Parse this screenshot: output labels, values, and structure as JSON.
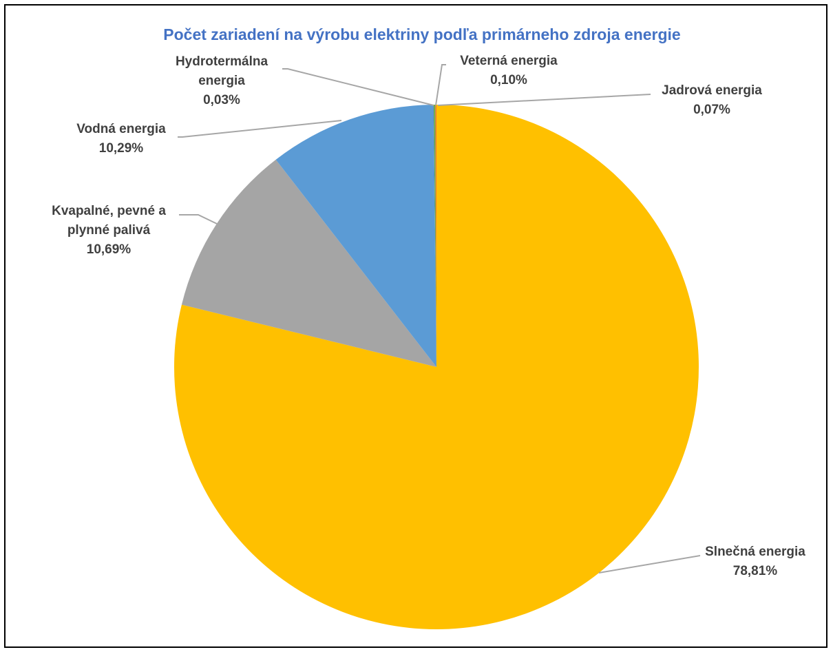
{
  "chart_data": {
    "type": "pie",
    "title": "Počet zariadení na výrobu elektriny podľa primárneho zdroja energie",
    "start_angle_deg": 0,
    "direction": "clockwise",
    "slices": [
      {
        "label_lines": [
          "Slnečná energia"
        ],
        "value_label": "78,81%",
        "value": 78.81,
        "color": "#FFC000"
      },
      {
        "label_lines": [
          "Kvapalné, pevné a",
          "plynné palivá"
        ],
        "value_label": "10,69%",
        "value": 10.69,
        "color": "#A5A5A5"
      },
      {
        "label_lines": [
          "Vodná energia"
        ],
        "value_label": "10,29%",
        "value": 10.29,
        "color": "#5B9BD5"
      },
      {
        "label_lines": [
          "Hydrotermálna",
          "energia"
        ],
        "value_label": "0,03%",
        "value": 0.03,
        "color": "#4472C4"
      },
      {
        "label_lines": [
          "Veterná energia"
        ],
        "value_label": "0,10%",
        "value": 0.1,
        "color": "#70AD47"
      },
      {
        "label_lines": [
          "Jadrová energia"
        ],
        "value_label": "0,07%",
        "value": 0.07,
        "color": "#ED7D31"
      }
    ]
  },
  "colors": {
    "title": "#4472C4",
    "label_text": "#404040",
    "leader_line": "#A6A6A6",
    "border": "#000000"
  }
}
